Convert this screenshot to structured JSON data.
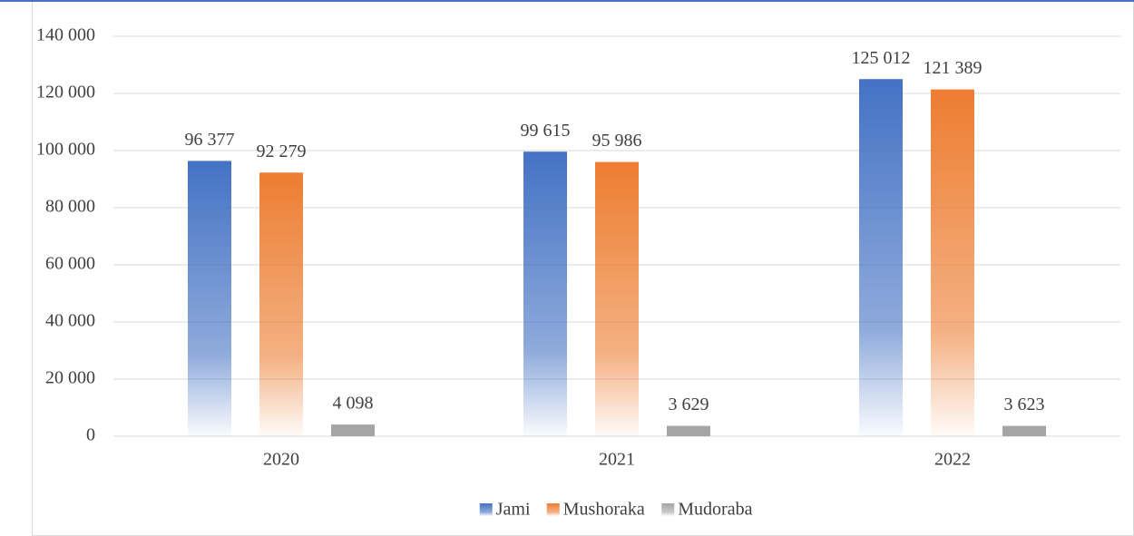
{
  "chart_data": {
    "type": "bar",
    "categories": [
      "2020",
      "2021",
      "2022"
    ],
    "series": [
      {
        "name": "Jami",
        "color": "#4472c4",
        "values": [
          96377,
          99615,
          125012
        ],
        "value_labels": [
          "96 377",
          "99 615",
          "125 012"
        ]
      },
      {
        "name": "Mushoraka",
        "color": "#ed7d31",
        "values": [
          92279,
          95986,
          121389
        ],
        "value_labels": [
          "92 279",
          "95 986",
          "121 389"
        ]
      },
      {
        "name": "Mudoraba",
        "color": "#a5a5a5",
        "values": [
          4098,
          3629,
          3623
        ],
        "value_labels": [
          "4 098",
          "3 629",
          "3 623"
        ]
      }
    ],
    "ylim": [
      0,
      140000
    ],
    "yticks": [
      0,
      {
        "value": 20000,
        "label": "20 000"
      },
      {
        "value": 40000,
        "label": "40 000"
      },
      {
        "value": 60000,
        "label": "60 000"
      },
      {
        "value": 80000,
        "label": "80 000"
      },
      {
        "value": 100000,
        "label": "100 000"
      },
      {
        "value": 120000,
        "label": "120 000"
      },
      {
        "value": 140000,
        "label": "140 000"
      }
    ],
    "grid": true,
    "legend": "bottom"
  }
}
